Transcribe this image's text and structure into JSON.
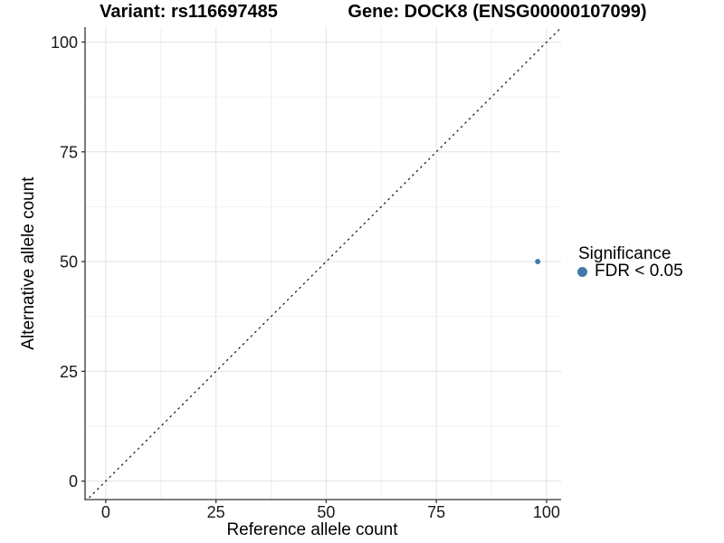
{
  "page": {
    "background": "#ffffff"
  },
  "chart_data": {
    "type": "scatter",
    "titles": {
      "left": "Variant: rs116697485",
      "right": "Gene: DOCK8 (ENSG00000107099)"
    },
    "xlabel": "Reference allele count",
    "ylabel": "Alternative allele count",
    "xticks": [
      0,
      25,
      50,
      75,
      100
    ],
    "yticks": [
      0,
      25,
      50,
      75,
      100
    ],
    "xticks_minor": [
      12.5,
      37.5,
      62.5,
      87.5
    ],
    "yticks_minor": [
      12.5,
      37.5,
      62.5,
      87.5
    ],
    "xlim": [
      -4.7,
      103.3
    ],
    "ylim": [
      -4.2,
      103.4
    ],
    "grid": "major and minor gridlines, white panel, no top/right border",
    "reference_line": {
      "equation": "y = x",
      "style": "dashed",
      "color": "#141414"
    },
    "series": [
      {
        "name": "FDR < 0.05",
        "color": "#4579ab",
        "point_radius": 3,
        "points": [
          {
            "x": 98,
            "y": 50
          }
        ]
      }
    ],
    "legend": {
      "title": "Significance",
      "position": "right",
      "items": [
        {
          "label": "FDR < 0.05",
          "color": "#4579ab",
          "marker": "circle"
        }
      ]
    },
    "colors": {
      "grid_major": "#e3e3e3",
      "grid_minor": "#f0f0f0",
      "axis_line": "#333333",
      "tick_text": "#1a1a1a",
      "title_text": "#000000",
      "point": "#4579ab"
    }
  }
}
